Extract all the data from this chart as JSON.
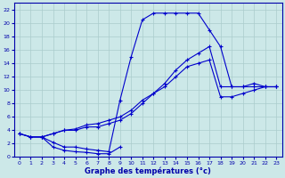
{
  "xlabel": "Graphe des températures (°c)",
  "bg_color": "#cce8e8",
  "grid_color": "#aacccc",
  "line_color": "#0000cc",
  "xlim": [
    -0.5,
    23.5
  ],
  "ylim": [
    0,
    23
  ],
  "xticks": [
    0,
    1,
    2,
    3,
    4,
    5,
    6,
    7,
    8,
    9,
    10,
    11,
    12,
    13,
    14,
    15,
    16,
    17,
    18,
    19,
    20,
    21,
    22,
    23
  ],
  "yticks": [
    0,
    2,
    4,
    6,
    8,
    10,
    12,
    14,
    16,
    18,
    20,
    22
  ],
  "line1_x": [
    0,
    1,
    2,
    3,
    4,
    5,
    6,
    7,
    8,
    9,
    10,
    11,
    12,
    13,
    14,
    15,
    16,
    17,
    18,
    19,
    20,
    21,
    22,
    23
  ],
  "line1_y": [
    3.5,
    3.0,
    3.0,
    2.2,
    1.5,
    1.5,
    1.2,
    1.0,
    0.8,
    8.5,
    15.0,
    20.5,
    21.5,
    21.5,
    21.5,
    21.5,
    21.5,
    19.0,
    16.5,
    10.5,
    10.5,
    11.0,
    10.5,
    10.5
  ],
  "line2_x": [
    0,
    1,
    2,
    3,
    4,
    5,
    6,
    7,
    8,
    9,
    10,
    11,
    12,
    13,
    14,
    15,
    16,
    17,
    18,
    19,
    20,
    21,
    22,
    23
  ],
  "line2_y": [
    3.5,
    3.0,
    3.0,
    3.5,
    4.0,
    4.0,
    4.5,
    4.5,
    5.0,
    5.5,
    6.5,
    8.0,
    9.5,
    11.0,
    13.0,
    14.5,
    15.5,
    16.5,
    10.5,
    10.5,
    10.5,
    10.5,
    10.5,
    10.5
  ],
  "line3_x": [
    0,
    1,
    2,
    3,
    4,
    5,
    6,
    7,
    8,
    9,
    10,
    11,
    12,
    13,
    14,
    15,
    16,
    17,
    18,
    19,
    20,
    21,
    22,
    23
  ],
  "line3_y": [
    3.5,
    3.0,
    3.0,
    3.5,
    4.0,
    4.2,
    4.8,
    5.0,
    5.5,
    6.0,
    7.0,
    8.5,
    9.5,
    10.5,
    12.0,
    13.5,
    14.0,
    14.5,
    9.0,
    9.0,
    9.5,
    10.0,
    10.5,
    10.5
  ],
  "line4_x": [
    2,
    3,
    4,
    5,
    6,
    7,
    8,
    9
  ],
  "line4_y": [
    3.0,
    1.5,
    1.0,
    0.8,
    0.7,
    0.5,
    0.5,
    1.5
  ],
  "font_color": "#0000aa"
}
